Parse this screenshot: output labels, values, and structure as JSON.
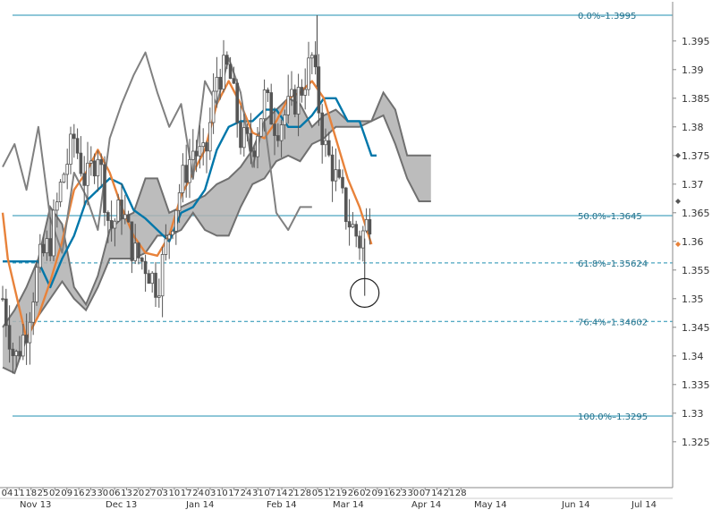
{
  "chart_data": {
    "type": "candlestick",
    "grid": false,
    "legend": "none",
    "x_range": [
      "2013-11-04",
      "2014-07-28"
    ],
    "ylim": [
      1.32,
      1.4
    ],
    "y_ticks": [
      "1.395",
      "1.39",
      "1.385",
      "1.38",
      "1.375",
      "1.37",
      "1.365",
      "1.36",
      "1.355",
      "1.35",
      "1.345",
      "1.34",
      "1.335",
      "1.33",
      "1.325"
    ],
    "y_tick_values": [
      1.395,
      1.39,
      1.385,
      1.38,
      1.375,
      1.37,
      1.365,
      1.36,
      1.355,
      1.35,
      1.345,
      1.34,
      1.335,
      1.33,
      1.325
    ],
    "x_day_labels": [
      "04",
      "11",
      "18",
      "25",
      "02",
      "09",
      "16",
      "23",
      "30",
      "06",
      "13",
      "20",
      "27",
      "03",
      "10",
      "17",
      "24",
      "03",
      "10",
      "17",
      "24",
      "31",
      "07",
      "14",
      "21",
      "28",
      "05",
      "12",
      "19",
      "26",
      "02",
      "09",
      "16",
      "23",
      "30",
      "07",
      "14",
      "21",
      "28"
    ],
    "x_months": [
      "Nov 13",
      "Dec 13",
      "Jan 14",
      "Feb 14",
      "Mar 14",
      "Apr 14",
      "May 14",
      "Jun 14",
      "Jul 14"
    ],
    "fib_levels": [
      {
        "label": "0.0%–1.3995",
        "value": 1.3995
      },
      {
        "label": "50.0%–1.3645",
        "value": 1.3645
      },
      {
        "label": "61.8%–1.35624",
        "value": 1.35624
      },
      {
        "label": "76.4%–1.34602",
        "value": 1.34602
      },
      {
        "label": "100.0%–1.3295",
        "value": 1.3295
      }
    ],
    "right_markers": [
      {
        "value": 1.375,
        "color": "#555555"
      },
      {
        "value": 1.367,
        "color": "#555555"
      },
      {
        "value": 1.3595,
        "color": "#e8823a"
      }
    ],
    "ohlc_anchor_closes": [
      [
        "2013-11-04",
        1.35
      ],
      [
        "2013-11-11",
        1.339
      ],
      [
        "2013-11-18",
        1.345
      ],
      [
        "2013-11-25",
        1.356
      ],
      [
        "2013-12-02",
        1.36
      ],
      [
        "2013-12-09",
        1.371
      ],
      [
        "2013-12-16",
        1.378
      ],
      [
        "2013-12-23",
        1.37
      ],
      [
        "2013-12-30",
        1.376
      ],
      [
        "2014-01-06",
        1.362
      ],
      [
        "2014-01-13",
        1.366
      ],
      [
        "2014-01-20",
        1.358
      ],
      [
        "2014-01-27",
        1.356
      ],
      [
        "2014-02-03",
        1.352
      ],
      [
        "2014-02-10",
        1.362
      ],
      [
        "2014-02-17",
        1.37
      ],
      [
        "2014-02-24",
        1.376
      ],
      [
        "2014-03-03",
        1.374
      ],
      [
        "2014-03-10",
        1.389
      ],
      [
        "2014-03-17",
        1.39
      ],
      [
        "2014-03-24",
        1.378
      ],
      [
        "2014-03-31",
        1.376
      ],
      [
        "2014-04-07",
        1.385
      ],
      [
        "2014-04-14",
        1.38
      ],
      [
        "2014-04-21",
        1.383
      ],
      [
        "2014-04-28",
        1.386
      ],
      [
        "2014-05-05",
        1.392
      ],
      [
        "2014-05-12",
        1.377
      ],
      [
        "2014-05-19",
        1.371
      ],
      [
        "2014-05-26",
        1.364
      ],
      [
        "2014-06-02",
        1.36
      ],
      [
        "2014-06-09",
        1.365
      ]
    ],
    "series": [
      {
        "color": "#0077aa",
        "points": [
          [
            "2013-11-04",
            1.3565
          ],
          [
            "2013-11-25",
            1.3565
          ],
          [
            "2013-12-02",
            1.352
          ],
          [
            "2013-12-09",
            1.357
          ],
          [
            "2013-12-16",
            1.361
          ],
          [
            "2013-12-23",
            1.367
          ],
          [
            "2013-12-30",
            1.369
          ],
          [
            "2014-01-06",
            1.371
          ],
          [
            "2014-01-13",
            1.37
          ],
          [
            "2014-01-20",
            1.3655
          ],
          [
            "2014-01-27",
            1.364
          ],
          [
            "2014-02-03",
            1.362
          ],
          [
            "2014-02-10",
            1.36
          ],
          [
            "2014-02-17",
            1.365
          ],
          [
            "2014-02-24",
            1.366
          ],
          [
            "2014-03-03",
            1.369
          ],
          [
            "2014-03-10",
            1.376
          ],
          [
            "2014-03-17",
            1.38
          ],
          [
            "2014-03-24",
            1.381
          ],
          [
            "2014-03-31",
            1.381
          ],
          [
            "2014-04-07",
            1.383
          ],
          [
            "2014-04-14",
            1.383
          ],
          [
            "2014-04-21",
            1.38
          ],
          [
            "2014-04-28",
            1.38
          ],
          [
            "2014-05-05",
            1.382
          ],
          [
            "2014-05-12",
            1.385
          ],
          [
            "2014-05-19",
            1.385
          ],
          [
            "2014-05-26",
            1.381
          ],
          [
            "2014-06-02",
            1.381
          ],
          [
            "2014-06-09",
            1.375
          ],
          [
            "2014-06-12",
            1.375
          ]
        ]
      },
      {
        "color": "#e8823a",
        "points": [
          [
            "2013-11-04",
            1.365
          ],
          [
            "2013-11-07",
            1.357
          ],
          [
            "2013-11-18",
            1.343
          ],
          [
            "2013-11-25",
            1.347
          ],
          [
            "2013-12-02",
            1.353
          ],
          [
            "2013-12-09",
            1.36
          ],
          [
            "2013-12-16",
            1.369
          ],
          [
            "2013-12-23",
            1.372
          ],
          [
            "2013-12-30",
            1.376
          ],
          [
            "2014-01-06",
            1.372
          ],
          [
            "2014-01-13",
            1.366
          ],
          [
            "2014-01-20",
            1.361
          ],
          [
            "2014-01-27",
            1.358
          ],
          [
            "2014-02-03",
            1.3575
          ],
          [
            "2014-02-10",
            1.361
          ],
          [
            "2014-02-17",
            1.368
          ],
          [
            "2014-02-24",
            1.372
          ],
          [
            "2014-03-03",
            1.376
          ],
          [
            "2014-03-10",
            1.384
          ],
          [
            "2014-03-17",
            1.388
          ],
          [
            "2014-03-24",
            1.384
          ],
          [
            "2014-03-31",
            1.379
          ],
          [
            "2014-04-07",
            1.378
          ],
          [
            "2014-04-14",
            1.381
          ],
          [
            "2014-04-21",
            1.385
          ],
          [
            "2014-04-28",
            1.386
          ],
          [
            "2014-05-05",
            1.388
          ],
          [
            "2014-05-12",
            1.385
          ],
          [
            "2014-05-19",
            1.378
          ],
          [
            "2014-05-26",
            1.371
          ],
          [
            "2014-06-02",
            1.366
          ],
          [
            "2014-06-09",
            1.3595
          ]
        ]
      },
      {
        "color": "#808080",
        "points": [
          [
            "2013-11-04",
            1.373
          ],
          [
            "2013-11-11",
            1.377
          ],
          [
            "2013-11-18",
            1.369
          ],
          [
            "2013-11-25",
            1.38
          ],
          [
            "2013-12-02",
            1.364
          ],
          [
            "2013-12-09",
            1.358
          ],
          [
            "2013-12-16",
            1.372
          ],
          [
            "2013-12-23",
            1.368
          ],
          [
            "2013-12-30",
            1.362
          ],
          [
            "2014-01-06",
            1.378
          ],
          [
            "2014-01-13",
            1.384
          ],
          [
            "2014-01-20",
            1.389
          ],
          [
            "2014-01-27",
            1.393
          ],
          [
            "2014-02-03",
            1.386
          ],
          [
            "2014-02-10",
            1.38
          ],
          [
            "2014-02-17",
            1.384
          ],
          [
            "2014-02-24",
            1.371
          ],
          [
            "2014-03-03",
            1.388
          ],
          [
            "2014-03-10",
            1.384
          ],
          [
            "2014-03-17",
            1.392
          ],
          [
            "2014-03-24",
            1.386
          ],
          [
            "2014-03-31",
            1.373
          ],
          [
            "2014-04-07",
            1.381
          ],
          [
            "2014-04-14",
            1.365
          ],
          [
            "2014-04-21",
            1.362
          ],
          [
            "2014-04-28",
            1.366
          ],
          [
            "2014-05-05",
            1.366
          ]
        ]
      }
    ],
    "cloud": {
      "fill": "#b0b0b0",
      "edge": "#707070",
      "upper": [
        [
          "2013-11-04",
          1.345
        ],
        [
          "2013-11-11",
          1.348
        ],
        [
          "2013-11-18",
          1.352
        ],
        [
          "2013-11-25",
          1.357
        ],
        [
          "2013-12-02",
          1.366
        ],
        [
          "2013-12-09",
          1.363
        ],
        [
          "2013-12-16",
          1.352
        ],
        [
          "2013-12-23",
          1.349
        ],
        [
          "2013-12-30",
          1.354
        ],
        [
          "2014-01-06",
          1.362
        ],
        [
          "2014-01-13",
          1.364
        ],
        [
          "2014-01-20",
          1.365
        ],
        [
          "2014-01-27",
          1.371
        ],
        [
          "2014-02-03",
          1.371
        ],
        [
          "2014-02-10",
          1.365
        ],
        [
          "2014-02-17",
          1.366
        ],
        [
          "2014-02-24",
          1.367
        ],
        [
          "2014-03-03",
          1.368
        ],
        [
          "2014-03-10",
          1.37
        ],
        [
          "2014-03-17",
          1.371
        ],
        [
          "2014-03-24",
          1.373
        ],
        [
          "2014-03-31",
          1.376
        ],
        [
          "2014-04-07",
          1.381
        ],
        [
          "2014-04-14",
          1.383
        ],
        [
          "2014-04-21",
          1.385
        ],
        [
          "2014-04-28",
          1.384
        ],
        [
          "2014-05-05",
          1.38
        ],
        [
          "2014-05-12",
          1.382
        ],
        [
          "2014-05-19",
          1.383
        ],
        [
          "2014-05-26",
          1.381
        ],
        [
          "2014-06-02",
          1.381
        ],
        [
          "2014-06-09",
          1.381
        ],
        [
          "2014-06-16",
          1.386
        ],
        [
          "2014-06-23",
          1.383
        ],
        [
          "2014-06-30",
          1.375
        ],
        [
          "2014-07-07",
          1.375
        ],
        [
          "2014-07-14",
          1.375
        ]
      ],
      "lower": [
        [
          "2013-11-04",
          1.338
        ],
        [
          "2013-11-11",
          1.337
        ],
        [
          "2013-11-18",
          1.343
        ],
        [
          "2013-11-25",
          1.347
        ],
        [
          "2013-12-02",
          1.35
        ],
        [
          "2013-12-09",
          1.353
        ],
        [
          "2013-12-16",
          1.35
        ],
        [
          "2013-12-23",
          1.348
        ],
        [
          "2013-12-30",
          1.352
        ],
        [
          "2014-01-06",
          1.357
        ],
        [
          "2014-01-13",
          1.357
        ],
        [
          "2014-01-20",
          1.357
        ],
        [
          "2014-01-27",
          1.358
        ],
        [
          "2014-02-03",
          1.361
        ],
        [
          "2014-02-10",
          1.361
        ],
        [
          "2014-02-17",
          1.362
        ],
        [
          "2014-02-24",
          1.365
        ],
        [
          "2014-03-03",
          1.362
        ],
        [
          "2014-03-10",
          1.361
        ],
        [
          "2014-03-17",
          1.361
        ],
        [
          "2014-03-24",
          1.366
        ],
        [
          "2014-03-31",
          1.37
        ],
        [
          "2014-04-07",
          1.371
        ],
        [
          "2014-04-14",
          1.374
        ],
        [
          "2014-04-21",
          1.375
        ],
        [
          "2014-04-28",
          1.374
        ],
        [
          "2014-05-05",
          1.377
        ],
        [
          "2014-05-12",
          1.378
        ],
        [
          "2014-05-19",
          1.38
        ],
        [
          "2014-05-26",
          1.38
        ],
        [
          "2014-06-02",
          1.38
        ],
        [
          "2014-06-09",
          1.381
        ],
        [
          "2014-06-16",
          1.382
        ],
        [
          "2014-06-23",
          1.377
        ],
        [
          "2014-06-30",
          1.371
        ],
        [
          "2014-07-07",
          1.367
        ],
        [
          "2014-07-14",
          1.367
        ]
      ]
    },
    "circle_annotation": {
      "date": "2014-06-05",
      "value": 1.351
    }
  },
  "colors": {
    "fib_line": "#1f8fb0",
    "fib_text": "#1f6f8a",
    "candle": "#555555",
    "axis": "#888888",
    "tick_text": "#333333"
  }
}
